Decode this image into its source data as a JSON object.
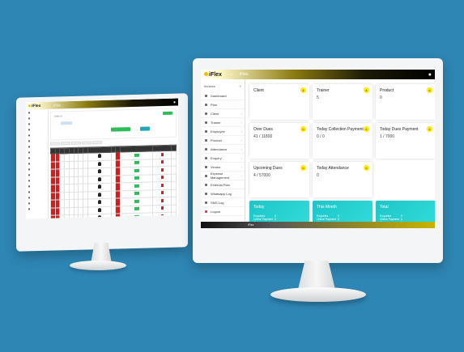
{
  "right_app": {
    "logo": "iFlex",
    "title": "iFlex",
    "sidebar": {
      "header": "Ifonews",
      "items": [
        {
          "label": "Dashboard",
          "caret": false
        },
        {
          "label": "Plan",
          "caret": false
        },
        {
          "label": "Client",
          "caret": true
        },
        {
          "label": "Trainer",
          "caret": true
        },
        {
          "label": "Employee",
          "caret": true
        },
        {
          "label": "Product",
          "caret": true
        },
        {
          "label": "Attendance",
          "caret": true
        },
        {
          "label": "Enquiry",
          "caret": true
        },
        {
          "label": "Vendor",
          "caret": true
        },
        {
          "label": "Expense Management",
          "caret": true
        },
        {
          "label": "External Plan",
          "caret": false
        },
        {
          "label": "Whatsapp Log",
          "caret": false
        },
        {
          "label": "SMS Log",
          "caret": false
        },
        {
          "label": "Logout",
          "caret": false
        }
      ]
    },
    "cards": [
      {
        "title": "Client",
        "value": "",
        "badge": "6"
      },
      {
        "title": "Trainer",
        "value": "5",
        "badge": "5"
      },
      {
        "title": "Product",
        "value": "0",
        "badge": "0"
      },
      {
        "title": "Over Dues",
        "value": "41 / 11800",
        "badge": "0"
      },
      {
        "title": "Today Collection Payment",
        "value": "0 / 0",
        "badge": "0"
      },
      {
        "title": "Today Dues Payment",
        "value": "1 / 7000",
        "badge": "0"
      },
      {
        "title": "Upcoming Dues",
        "value": "4 / 57000",
        "badge": "0"
      },
      {
        "title": "Today Attendance",
        "value": "0",
        "badge": "0"
      }
    ],
    "summaries": [
      {
        "title": "Today",
        "rows": [
          [
            "Enquiries",
            "0"
          ],
          [
            "Online Payment",
            "0"
          ],
          [
            "Cheque Payment",
            "0"
          ],
          [
            "Cash Payment",
            "0"
          ],
          [
            "Card Payment",
            "0"
          ]
        ]
      },
      {
        "title": "This Month",
        "rows": [
          [
            "Enquiries",
            "0"
          ],
          [
            "Online Payment",
            "0"
          ],
          [
            "Cheque Payment",
            "0"
          ],
          [
            "Cash Payment",
            "0"
          ],
          [
            "Card Payment",
            "0"
          ]
        ]
      },
      {
        "title": "Total",
        "rows": [
          [
            "Enquiries",
            "0"
          ],
          [
            "Online Payment",
            "0"
          ],
          [
            "Cheque Payment",
            "0"
          ],
          [
            "Cash Payment",
            "0"
          ],
          [
            "Card Payment",
            "0"
          ]
        ]
      }
    ],
    "statusbar": "iFlex"
  },
  "left_app": {
    "logo": "iFlex",
    "title": "iFlex",
    "sidebar_items": [
      "",
      "",
      "",
      "",
      "",
      "",
      "",
      "",
      "",
      "",
      "",
      "",
      "",
      "",
      "",
      "",
      "",
      ""
    ],
    "search_label": "Search",
    "table": {
      "headers": [
        "",
        "",
        "",
        "",
        "",
        "",
        "",
        "",
        "",
        "",
        "",
        "",
        "",
        ""
      ],
      "row_count": 12
    }
  },
  "colors": {
    "background": "#2e86b4",
    "accent_teal": "#1cc6c8",
    "badge_yellow": "#ffe800",
    "table_red": "#e81414",
    "button_green": "#2ebd59"
  }
}
